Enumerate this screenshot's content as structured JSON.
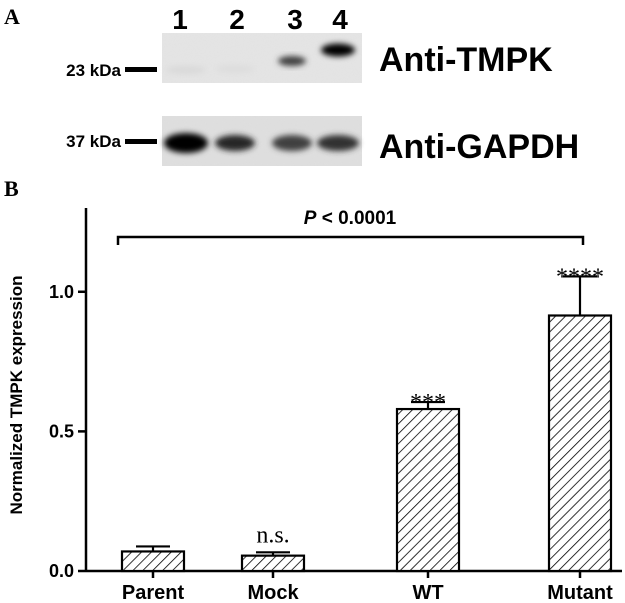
{
  "panel_a": {
    "letter": "A",
    "lane_labels": [
      "1",
      "2",
      "3",
      "4"
    ],
    "blots": [
      {
        "marker": "23 kDa",
        "antibody": "Anti-TMPK",
        "band_intensity": [
          0.08,
          0.06,
          0.75,
          1.0
        ]
      },
      {
        "marker": "37 kDa",
        "antibody": "Anti-GAPDH",
        "band_intensity": [
          1.0,
          0.85,
          0.75,
          0.8
        ]
      }
    ]
  },
  "panel_b": {
    "letter": "B",
    "pvalue": {
      "prefix": "P",
      "text": " < 0.0001"
    }
  },
  "chart_data": {
    "type": "bar",
    "categories": [
      "Parent",
      "Mock",
      "WT",
      "Mutant"
    ],
    "values": [
      0.07,
      0.055,
      0.58,
      0.915
    ],
    "errors": [
      0.018,
      0.012,
      0.025,
      0.14
    ],
    "annotations": [
      "",
      "n.s.",
      "***",
      "****"
    ],
    "ylabel": "Normalized TMPK expression",
    "ylim": [
      0,
      1.3
    ],
    "yticks": [
      0.0,
      0.5,
      1.0
    ],
    "ytick_labels": [
      "0.0",
      "0.5",
      "1.0"
    ],
    "bar_fill": "diagonal-hatch",
    "colors": {
      "bar_edge": "#000000",
      "hatch": "#000000",
      "background": "#ffffff"
    }
  }
}
